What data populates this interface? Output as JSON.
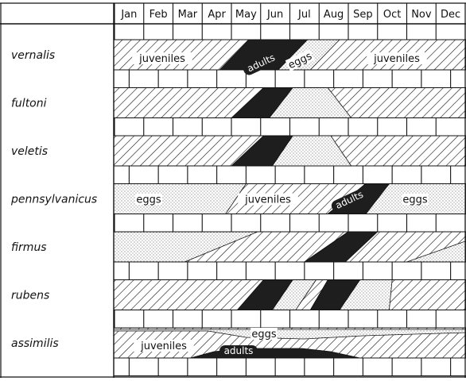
{
  "months": [
    "Jan",
    "Feb",
    "Mar",
    "Apr",
    "May",
    "Jun",
    "Jul",
    "Aug",
    "Sep",
    "Oct",
    "Nov",
    "Dec"
  ],
  "species": [
    {
      "name": "vernalis",
      "labels": [
        {
          "text": "juveniles",
          "stage": "juveniles"
        },
        {
          "text": "adults",
          "stage": "adults"
        },
        {
          "text": "eggs",
          "stage": "eggs"
        },
        {
          "text": "juveniles",
          "stage": "juveniles"
        }
      ]
    },
    {
      "name": "fultoni",
      "labels": []
    },
    {
      "name": "veletis",
      "labels": []
    },
    {
      "name": "pennsylvanicus",
      "labels": [
        {
          "text": "eggs",
          "stage": "eggs"
        },
        {
          "text": "juveniles",
          "stage": "juveniles"
        },
        {
          "text": "adults",
          "stage": "adults"
        },
        {
          "text": "eggs",
          "stage": "eggs"
        }
      ]
    },
    {
      "name": "firmus",
      "labels": []
    },
    {
      "name": "rubens",
      "labels": []
    },
    {
      "name": "assimilis",
      "labels": [
        {
          "text": "juveniles",
          "stage": "juveniles"
        },
        {
          "text": "eggs",
          "stage": "eggs"
        },
        {
          "text": "adults",
          "stage": "adults"
        }
      ]
    }
  ],
  "legend_stages": [
    "eggs",
    "juveniles",
    "adults"
  ]
}
